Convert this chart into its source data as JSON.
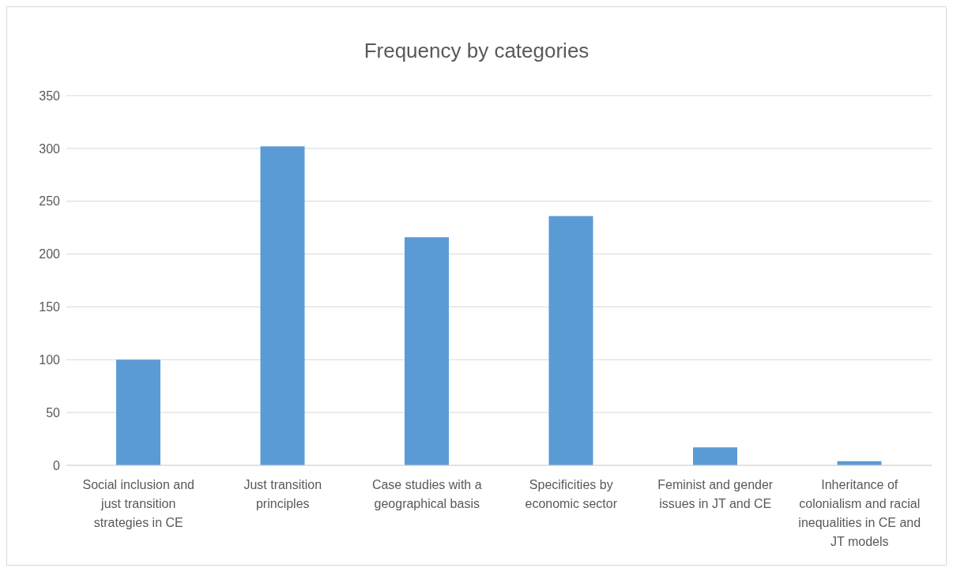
{
  "chart_data": {
    "type": "bar",
    "title": "Frequency by categories",
    "categories": [
      "Social inclusion and just transition strategies in CE",
      "Just transition principles",
      "Case studies with a geographical basis",
      "Specificities by economic sector",
      "Feminist and gender issues in JT and CE",
      "Inheritance of colonialism and racial inequalities in CE and JT models"
    ],
    "values": [
      100,
      302,
      216,
      236,
      17,
      4
    ],
    "color": "#5b9bd5",
    "ylim": [
      0,
      350
    ],
    "yticks": [
      0,
      50,
      100,
      150,
      200,
      250,
      300,
      350
    ],
    "grid": "y"
  }
}
